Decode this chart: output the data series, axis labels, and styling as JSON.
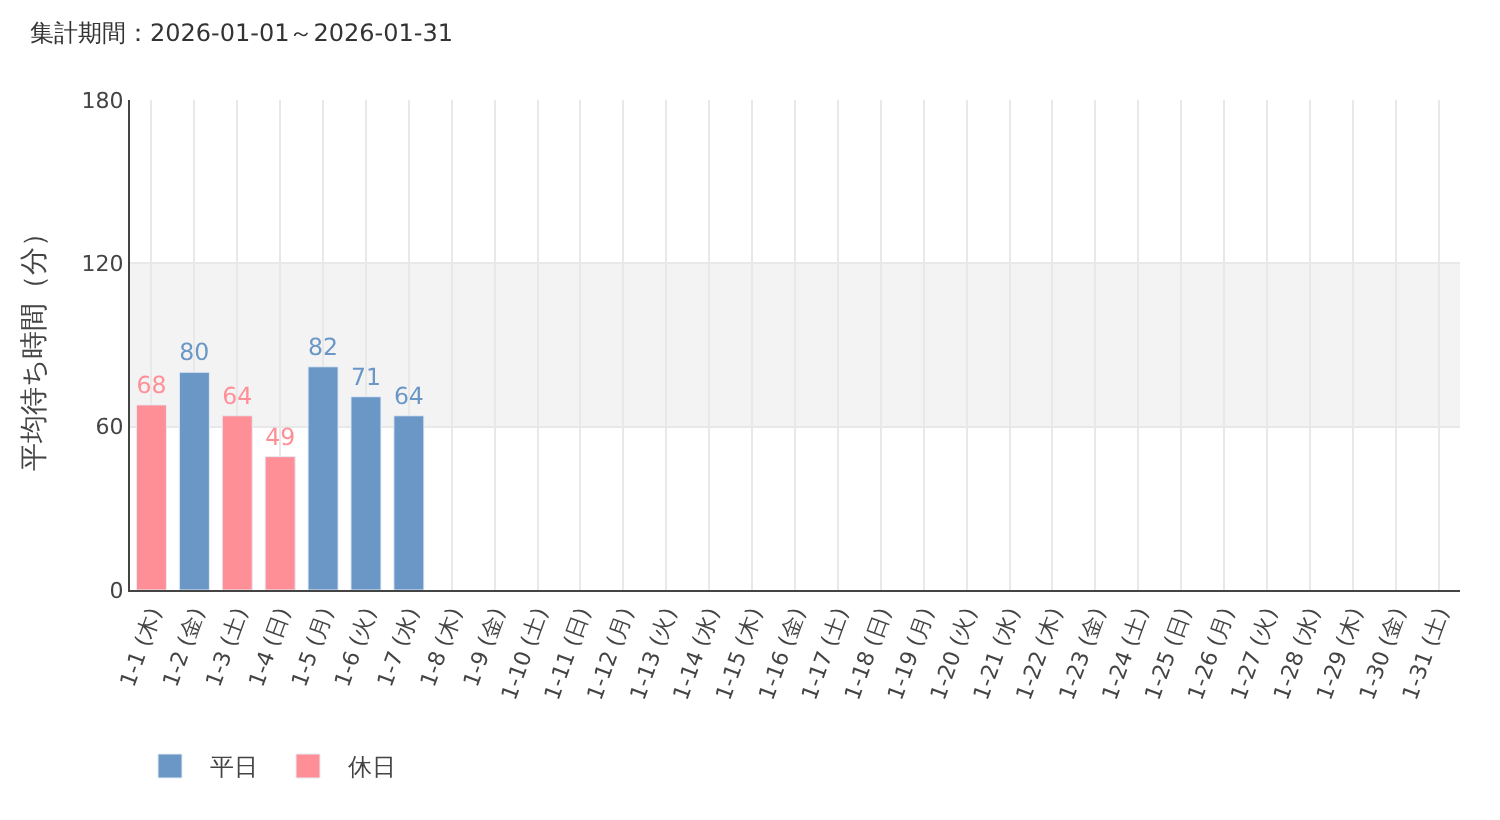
{
  "chart_data": {
    "type": "bar",
    "title": "集計期間：2026-01-01～2026-01-31",
    "ylabel": "平均待ち時間（分）",
    "categories": [
      "1-1 (木)",
      "1-2 (金)",
      "1-3 (土)",
      "1-4 (日)",
      "1-5 (月)",
      "1-6 (火)",
      "1-7 (水)",
      "1-8 (木)",
      "1-9 (金)",
      "1-10 (土)",
      "1-11 (日)",
      "1-12 (月)",
      "1-13 (火)",
      "1-14 (水)",
      "1-15 (木)",
      "1-16 (金)",
      "1-17 (土)",
      "1-18 (日)",
      "1-19 (月)",
      "1-20 (火)",
      "1-21 (水)",
      "1-22 (木)",
      "1-23 (金)",
      "1-24 (土)",
      "1-25 (日)",
      "1-26 (月)",
      "1-27 (火)",
      "1-28 (水)",
      "1-29 (木)",
      "1-30 (金)",
      "1-31 (土)"
    ],
    "series": [
      {
        "name": "平日",
        "color": "#6a97c6",
        "values": [
          null,
          80,
          null,
          null,
          82,
          71,
          64,
          null,
          null,
          null,
          null,
          null,
          null,
          null,
          null,
          null,
          null,
          null,
          null,
          null,
          null,
          null,
          null,
          null,
          null,
          null,
          null,
          null,
          null,
          null,
          null
        ]
      },
      {
        "name": "休日",
        "color": "#ff8f96",
        "values": [
          68,
          null,
          64,
          49,
          null,
          null,
          null,
          null,
          null,
          null,
          null,
          null,
          null,
          null,
          null,
          null,
          null,
          null,
          null,
          null,
          null,
          null,
          null,
          null,
          null,
          null,
          null,
          null,
          null,
          null,
          null
        ]
      }
    ],
    "ylim": [
      0,
      180
    ],
    "yticks": [
      0,
      60,
      120,
      180
    ],
    "bands": [
      {
        "axis": "y",
        "from": 60,
        "to": 120,
        "color": "#f3f3f3"
      }
    ],
    "data_labels": true,
    "grid": true,
    "legend": "bottom left"
  }
}
